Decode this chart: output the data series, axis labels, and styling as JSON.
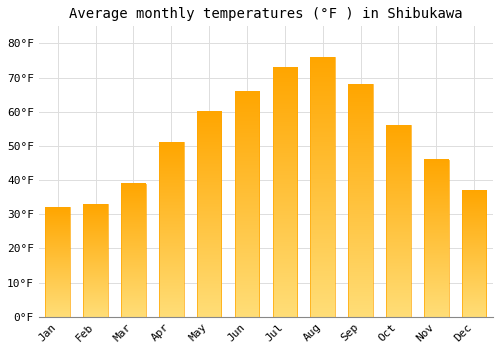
{
  "title": "Average monthly temperatures (°F ) in Shibukawa",
  "months": [
    "Jan",
    "Feb",
    "Mar",
    "Apr",
    "May",
    "Jun",
    "Jul",
    "Aug",
    "Sep",
    "Oct",
    "Nov",
    "Dec"
  ],
  "values": [
    32,
    33,
    39,
    51,
    60,
    66,
    73,
    76,
    68,
    56,
    46,
    37
  ],
  "bar_color_top": "#FFA500",
  "bar_color_bottom": "#FFD966",
  "background_color": "#FFFFFF",
  "plot_bg_color": "#FFFFFF",
  "grid_color": "#DDDDDD",
  "ylim": [
    0,
    85
  ],
  "yticks": [
    0,
    10,
    20,
    30,
    40,
    50,
    60,
    70,
    80
  ],
  "title_fontsize": 10,
  "tick_fontsize": 8,
  "figsize": [
    5.0,
    3.5
  ],
  "dpi": 100,
  "bar_width": 0.65
}
